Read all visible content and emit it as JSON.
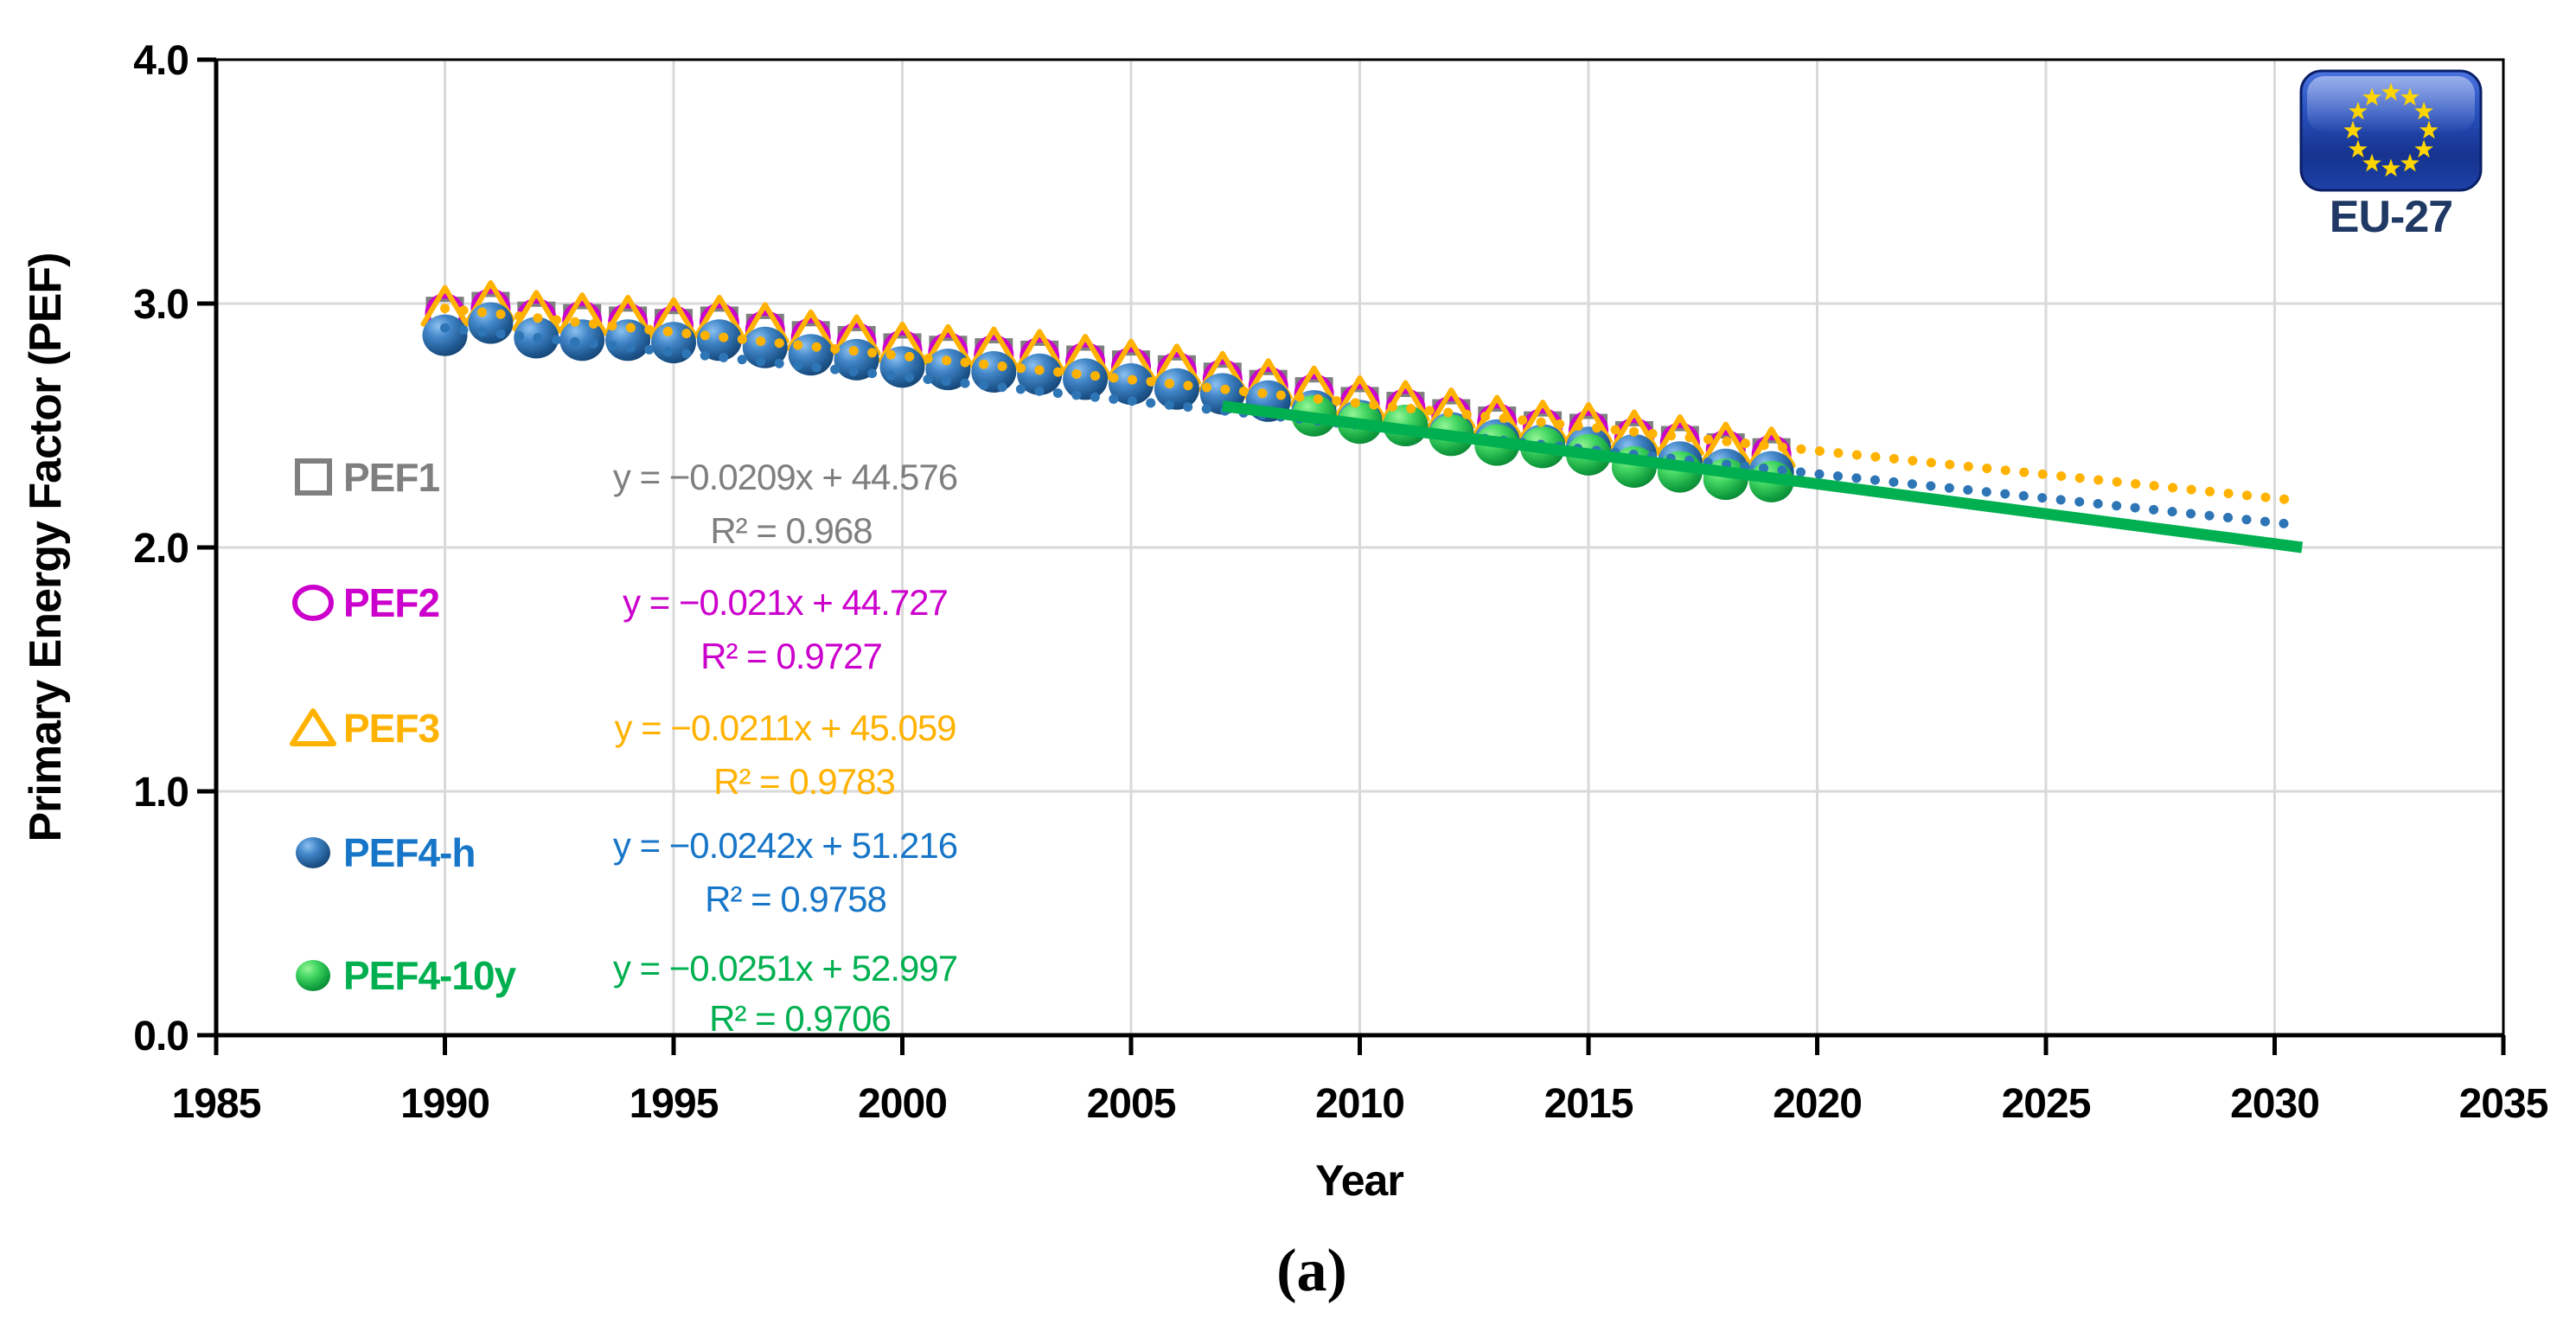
{
  "figure": {
    "caption": "(a)"
  },
  "badge": {
    "label": "EU-27",
    "flag_fill": "#1E3EA8",
    "flag_border": "#0A1F66",
    "star_color": "#FFD500",
    "label_color": "#1F3864"
  },
  "chart_data": {
    "type": "scatter",
    "title": "",
    "xlabel": "Year",
    "ylabel": "Primary Energy Factor (PEF)",
    "xlim": [
      1985,
      2035
    ],
    "ylim": [
      0.0,
      4.0
    ],
    "xticks": [
      "1985",
      "1990",
      "1995",
      "2000",
      "2005",
      "2010",
      "2015",
      "2020",
      "2025",
      "2030",
      "2035"
    ],
    "yticks": [
      "0.0",
      "1.0",
      "2.0",
      "3.0",
      "4.0"
    ],
    "grid": true,
    "grid_color": "#D9D9D9",
    "axis_color": "#000000",
    "legend_position": "inside-left",
    "series": [
      {
        "name": "PEF1",
        "marker": "open-square",
        "color": "#7F7F7F",
        "equation": "y = −0.0209x + 44.576",
        "r2": "R² = 0.968",
        "years": [
          1990,
          1991,
          1992,
          1993,
          1994,
          1995,
          1996,
          1997,
          1998,
          1999,
          2000,
          2001,
          2002,
          2003,
          2004,
          2005,
          2006,
          2007,
          2008,
          2009,
          2010,
          2011,
          2012,
          2013,
          2014,
          2015,
          2016,
          2017,
          2018,
          2019
        ],
        "values": [
          2.95,
          2.97,
          2.93,
          2.92,
          2.91,
          2.9,
          2.91,
          2.88,
          2.85,
          2.83,
          2.8,
          2.79,
          2.78,
          2.77,
          2.75,
          2.73,
          2.71,
          2.68,
          2.65,
          2.62,
          2.58,
          2.56,
          2.53,
          2.5,
          2.48,
          2.47,
          2.44,
          2.42,
          2.39,
          2.37
        ]
      },
      {
        "name": "PEF2",
        "marker": "open-circle",
        "color": "#CC00CC",
        "equation": "y = −0.021x + 44.727",
        "r2": "R² = 0.9727",
        "years": [
          1990,
          1991,
          1992,
          1993,
          1994,
          1995,
          1996,
          1997,
          1998,
          1999,
          2000,
          2001,
          2002,
          2003,
          2004,
          2005,
          2006,
          2007,
          2008,
          2009,
          2010,
          2011,
          2012,
          2013,
          2014,
          2015,
          2016,
          2017,
          2018,
          2019
        ],
        "values": [
          2.96,
          2.98,
          2.94,
          2.93,
          2.92,
          2.91,
          2.92,
          2.89,
          2.86,
          2.84,
          2.81,
          2.8,
          2.79,
          2.78,
          2.76,
          2.74,
          2.72,
          2.69,
          2.66,
          2.63,
          2.59,
          2.57,
          2.54,
          2.51,
          2.49,
          2.48,
          2.45,
          2.43,
          2.4,
          2.38
        ]
      },
      {
        "name": "PEF3",
        "marker": "open-triangle",
        "color": "#FFB200",
        "equation": "y = −0.0211x + 45.059",
        "r2": "R² = 0.9783",
        "years": [
          1990,
          1991,
          1992,
          1993,
          1994,
          1995,
          1996,
          1997,
          1998,
          1999,
          2000,
          2001,
          2002,
          2003,
          2004,
          2005,
          2006,
          2007,
          2008,
          2009,
          2010,
          2011,
          2012,
          2013,
          2014,
          2015,
          2016,
          2017,
          2018,
          2019
        ],
        "values": [
          2.98,
          3.0,
          2.96,
          2.95,
          2.94,
          2.93,
          2.94,
          2.91,
          2.88,
          2.86,
          2.83,
          2.82,
          2.81,
          2.8,
          2.78,
          2.76,
          2.74,
          2.71,
          2.68,
          2.65,
          2.61,
          2.59,
          2.56,
          2.53,
          2.51,
          2.5,
          2.47,
          2.45,
          2.42,
          2.4
        ]
      },
      {
        "name": "PEF4-h",
        "marker": "sphere",
        "color": "#1776C8",
        "equation": "y = −0.0242x + 51.216",
        "r2": "R² = 0.9758",
        "years": [
          1990,
          1991,
          1992,
          1993,
          1994,
          1995,
          1996,
          1997,
          1998,
          1999,
          2000,
          2001,
          2002,
          2003,
          2004,
          2005,
          2006,
          2007,
          2008,
          2009,
          2010,
          2011,
          2012,
          2013,
          2014,
          2015,
          2016,
          2017,
          2018,
          2019
        ],
        "values": [
          2.87,
          2.92,
          2.86,
          2.85,
          2.85,
          2.84,
          2.85,
          2.82,
          2.79,
          2.77,
          2.74,
          2.73,
          2.72,
          2.71,
          2.69,
          2.67,
          2.65,
          2.63,
          2.6,
          2.56,
          2.52,
          2.5,
          2.47,
          2.44,
          2.42,
          2.41,
          2.38,
          2.35,
          2.32,
          2.31
        ]
      },
      {
        "name": "PEF4-10y",
        "marker": "sphere",
        "color": "#00B050",
        "equation": "y = −0.0251x + 52.997",
        "r2": "R² = 0.9706",
        "years": [
          2009,
          2010,
          2011,
          2012,
          2013,
          2014,
          2015,
          2016,
          2017,
          2018,
          2019
        ],
        "values": [
          2.54,
          2.51,
          2.5,
          2.46,
          2.42,
          2.41,
          2.38,
          2.33,
          2.31,
          2.28,
          2.27
        ]
      }
    ],
    "trendlines": [
      {
        "series": "PEF3",
        "style": "dotted",
        "color": "#FFB200",
        "x1": 1990,
        "y1": 2.98,
        "x2": 2030.6,
        "y2": 2.19
      },
      {
        "series": "PEF4-h",
        "style": "dotted",
        "color": "#2E75B6",
        "x1": 1990,
        "y1": 2.9,
        "x2": 2030.6,
        "y2": 2.09
      },
      {
        "series": "PEF4-10y",
        "style": "solid",
        "color": "#00B050",
        "x1": 2007,
        "y1": 2.58,
        "x2": 2030.6,
        "y2": 2.0
      }
    ]
  }
}
